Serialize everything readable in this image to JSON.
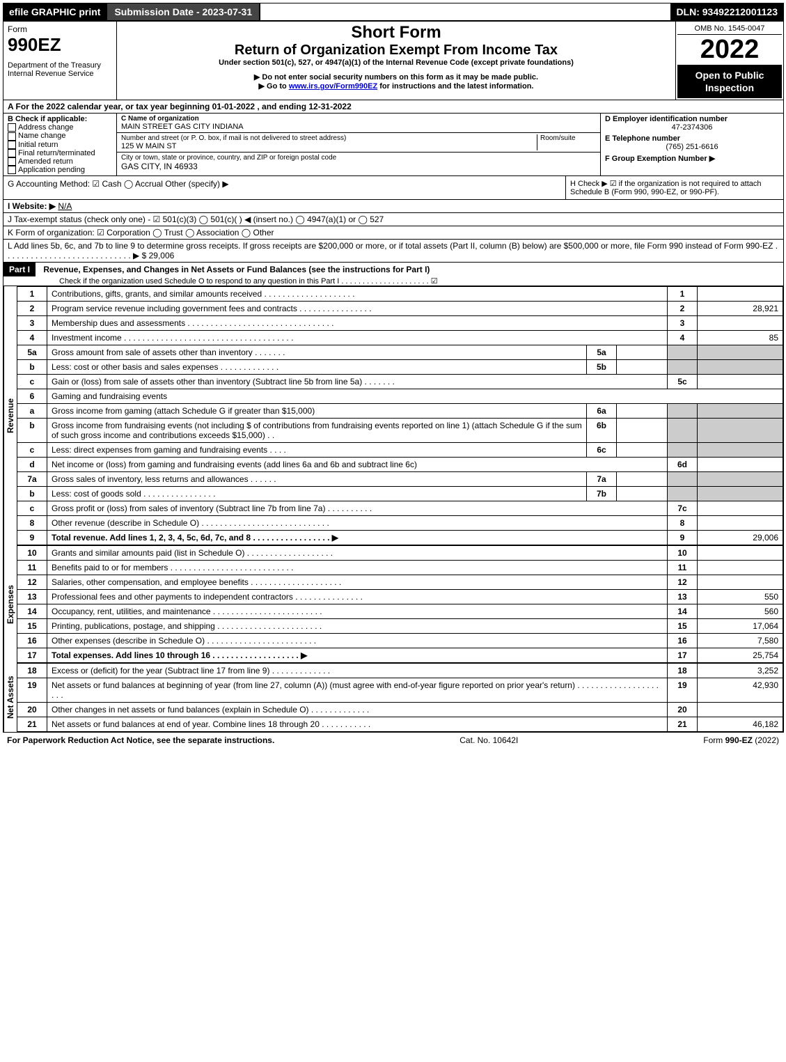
{
  "top": {
    "efile": "efile GRAPHIC print",
    "submission": "Submission Date - 2023-07-31",
    "dln": "DLN: 93492212001123"
  },
  "header": {
    "form_label": "Form",
    "form_number": "990EZ",
    "dept": "Department of the Treasury",
    "irs": "Internal Revenue Service",
    "short_form": "Short Form",
    "title": "Return of Organization Exempt From Income Tax",
    "subtitle": "Under section 501(c), 527, or 4947(a)(1) of the Internal Revenue Code (except private foundations)",
    "note1": "▶ Do not enter social security numbers on this form as it may be made public.",
    "note2": "▶ Go to www.irs.gov/Form990EZ for instructions and the latest information.",
    "omb": "OMB No. 1545-0047",
    "year": "2022",
    "open": "Open to Public Inspection"
  },
  "section_a": "A  For the 2022 calendar year, or tax year beginning 01-01-2022  , and ending 12-31-2022",
  "section_b": {
    "label": "B  Check if applicable:",
    "items": [
      "Address change",
      "Name change",
      "Initial return",
      "Final return/terminated",
      "Amended return",
      "Application pending"
    ]
  },
  "section_c": {
    "name_label": "C Name of organization",
    "name": "MAIN STREET GAS CITY INDIANA",
    "street_label": "Number and street (or P. O. box, if mail is not delivered to street address)",
    "room_label": "Room/suite",
    "street": "125 W MAIN ST",
    "city_label": "City or town, state or province, country, and ZIP or foreign postal code",
    "city": "GAS CITY, IN  46933"
  },
  "section_d": {
    "ein_label": "D Employer identification number",
    "ein": "47-2374306",
    "phone_label": "E Telephone number",
    "phone": "(765) 251-6616",
    "group_label": "F Group Exemption Number  ▶"
  },
  "section_g": "G Accounting Method:   ☑ Cash   ◯ Accrual   Other (specify) ▶",
  "section_h": "H  Check ▶ ☑ if the organization is not required to attach Schedule B (Form 990, 990-EZ, or 990-PF).",
  "section_i": "I Website: ▶ N/A",
  "section_j": "J Tax-exempt status (check only one) - ☑ 501(c)(3) ◯ 501(c)(  ) ◀ (insert no.) ◯ 4947(a)(1) or ◯ 527",
  "section_k": "K Form of organization:  ☑ Corporation  ◯ Trust  ◯ Association  ◯ Other",
  "section_l": {
    "text": "L Add lines 5b, 6c, and 7b to line 9 to determine gross receipts. If gross receipts are $200,000 or more, or if total assets (Part II, column (B) below) are $500,000 or more, file Form 990 instead of Form 990-EZ  . . . . . . . . . . . . . . . . . . . . . . . . . . . .  ▶ $",
    "amount": "29,006"
  },
  "part1": {
    "header": "Part I",
    "title": "Revenue, Expenses, and Changes in Net Assets or Fund Balances (see the instructions for Part I)",
    "check": "Check if the organization used Schedule O to respond to any question in this Part I . . . . . . . . . . . . . . . . . . . . .  ☑"
  },
  "sections": {
    "revenue": "Revenue",
    "expenses": "Expenses",
    "netassets": "Net Assets"
  },
  "lines": [
    {
      "n": "1",
      "desc": "Contributions, gifts, grants, and similar amounts received . . . . . . . . . . . . . . . . . . . .",
      "rn": "1",
      "amt": ""
    },
    {
      "n": "2",
      "desc": "Program service revenue including government fees and contracts . . . . . . . . . . . . . . . .",
      "rn": "2",
      "amt": "28,921"
    },
    {
      "n": "3",
      "desc": "Membership dues and assessments . . . . . . . . . . . . . . . . . . . . . . . . . . . . . . . .",
      "rn": "3",
      "amt": ""
    },
    {
      "n": "4",
      "desc": "Investment income . . . . . . . . . . . . . . . . . . . . . . . . . . . . . . . . . . . . .",
      "rn": "4",
      "amt": "85"
    },
    {
      "n": "5a",
      "desc": "Gross amount from sale of assets other than inventory . . . . . . .",
      "sub": "5a",
      "subamt": ""
    },
    {
      "n": "b",
      "desc": "Less: cost or other basis and sales expenses . . . . . . . . . . . . .",
      "sub": "5b",
      "subamt": ""
    },
    {
      "n": "c",
      "desc": "Gain or (loss) from sale of assets other than inventory (Subtract line 5b from line 5a) . . . . . . .",
      "rn": "5c",
      "amt": ""
    },
    {
      "n": "6",
      "desc": "Gaming and fundraising events",
      "plain": true
    },
    {
      "n": "a",
      "desc": "Gross income from gaming (attach Schedule G if greater than $15,000)",
      "sub": "6a",
      "subamt": ""
    },
    {
      "n": "b",
      "desc": "Gross income from fundraising events (not including $                    of contributions from fundraising events reported on line 1) (attach Schedule G if the sum of such gross income and contributions exceeds $15,000)   . .",
      "sub": "6b",
      "subamt": ""
    },
    {
      "n": "c",
      "desc": "Less: direct expenses from gaming and fundraising events   . . . .",
      "sub": "6c",
      "subamt": ""
    },
    {
      "n": "d",
      "desc": "Net income or (loss) from gaming and fundraising events (add lines 6a and 6b and subtract line 6c)",
      "rn": "6d",
      "amt": ""
    },
    {
      "n": "7a",
      "desc": "Gross sales of inventory, less returns and allowances . . . . . .",
      "sub": "7a",
      "subamt": ""
    },
    {
      "n": "b",
      "desc": "Less: cost of goods sold     . . . . . . . . . . . . . . . .",
      "sub": "7b",
      "subamt": ""
    },
    {
      "n": "c",
      "desc": "Gross profit or (loss) from sales of inventory (Subtract line 7b from line 7a) . . . . . . . . . .",
      "rn": "7c",
      "amt": ""
    },
    {
      "n": "8",
      "desc": "Other revenue (describe in Schedule O) . . . . . . . . . . . . . . . . . . . . . . . . . . . .",
      "rn": "8",
      "amt": ""
    },
    {
      "n": "9",
      "desc": "Total revenue. Add lines 1, 2, 3, 4, 5c, 6d, 7c, and 8  . . . . . . . . . . . . . . . . .  ▶",
      "rn": "9",
      "amt": "29,006",
      "bold": true
    }
  ],
  "exp_lines": [
    {
      "n": "10",
      "desc": "Grants and similar amounts paid (list in Schedule O) . . . . . . . . . . . . . . . . . . .",
      "rn": "10",
      "amt": ""
    },
    {
      "n": "11",
      "desc": "Benefits paid to or for members   . . . . . . . . . . . . . . . . . . . . . . . . . . .",
      "rn": "11",
      "amt": ""
    },
    {
      "n": "12",
      "desc": "Salaries, other compensation, and employee benefits . . . . . . . . . . . . . . . . . . . .",
      "rn": "12",
      "amt": ""
    },
    {
      "n": "13",
      "desc": "Professional fees and other payments to independent contractors . . . . . . . . . . . . . . .",
      "rn": "13",
      "amt": "550"
    },
    {
      "n": "14",
      "desc": "Occupancy, rent, utilities, and maintenance . . . . . . . . . . . . . . . . . . . . . . . .",
      "rn": "14",
      "amt": "560"
    },
    {
      "n": "15",
      "desc": "Printing, publications, postage, and shipping . . . . . . . . . . . . . . . . . . . . . . .",
      "rn": "15",
      "amt": "17,064"
    },
    {
      "n": "16",
      "desc": "Other expenses (describe in Schedule O)   . . . . . . . . . . . . . . . . . . . . . . . .",
      "rn": "16",
      "amt": "7,580"
    },
    {
      "n": "17",
      "desc": "Total expenses. Add lines 10 through 16   . . . . . . . . . . . . . . . . . . .  ▶",
      "rn": "17",
      "amt": "25,754",
      "bold": true
    }
  ],
  "net_lines": [
    {
      "n": "18",
      "desc": "Excess or (deficit) for the year (Subtract line 17 from line 9)    . . . . . . . . . . . . .",
      "rn": "18",
      "amt": "3,252"
    },
    {
      "n": "19",
      "desc": "Net assets or fund balances at beginning of year (from line 27, column (A)) (must agree with end-of-year figure reported on prior year's return) . . . . . . . . . . . . . . . . . . . . .",
      "rn": "19",
      "amt": "42,930"
    },
    {
      "n": "20",
      "desc": "Other changes in net assets or fund balances (explain in Schedule O) . . . . . . . . . . . . .",
      "rn": "20",
      "amt": ""
    },
    {
      "n": "21",
      "desc": "Net assets or fund balances at end of year. Combine lines 18 through 20 . . . . . . . . . . .",
      "rn": "21",
      "amt": "46,182"
    }
  ],
  "footer": {
    "left": "For Paperwork Reduction Act Notice, see the separate instructions.",
    "center": "Cat. No. 10642I",
    "right": "Form 990-EZ (2022)"
  }
}
